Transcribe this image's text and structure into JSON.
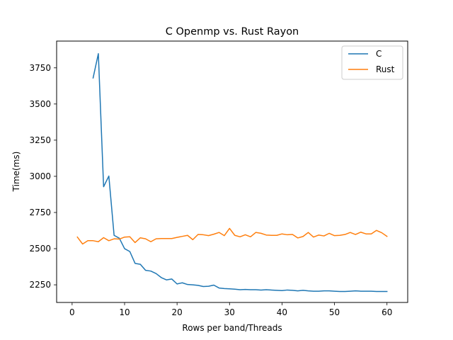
{
  "chart_data": {
    "type": "line",
    "title": "C Openmp vs. Rust Rayon",
    "xlabel": "Rows per band/Threads",
    "ylabel": "Time(ms)",
    "xlim": [
      -2.95,
      63.95
    ],
    "ylim": [
      2128,
      3935
    ],
    "xticks": [
      0,
      10,
      20,
      30,
      40,
      50,
      60
    ],
    "yticks": [
      2250,
      2500,
      2750,
      3000,
      3250,
      3500,
      3750
    ],
    "grid": false,
    "legend_position": "top-right",
    "series": [
      {
        "name": "C",
        "color": "#1f77b4",
        "x": [
          4,
          5,
          6,
          7,
          8,
          9,
          10,
          11,
          12,
          13,
          14,
          15,
          16,
          17,
          18,
          19,
          20,
          21,
          22,
          23,
          24,
          25,
          26,
          27,
          28,
          29,
          30,
          31,
          32,
          33,
          34,
          35,
          36,
          37,
          38,
          39,
          40,
          41,
          42,
          43,
          44,
          45,
          46,
          47,
          48,
          49,
          50,
          51,
          52,
          53,
          54,
          55,
          56,
          57,
          58,
          59,
          60
        ],
        "y": [
          3680,
          3848,
          2928,
          3002,
          2592,
          2572,
          2500,
          2480,
          2398,
          2392,
          2350,
          2345,
          2328,
          2300,
          2284,
          2290,
          2256,
          2264,
          2252,
          2250,
          2246,
          2238,
          2240,
          2248,
          2228,
          2224,
          2222,
          2220,
          2216,
          2218,
          2216,
          2216,
          2214,
          2216,
          2214,
          2212,
          2210,
          2214,
          2212,
          2208,
          2212,
          2208,
          2206,
          2206,
          2208,
          2208,
          2206,
          2204,
          2204,
          2206,
          2208,
          2206,
          2206,
          2206,
          2204,
          2204,
          2204
        ]
      },
      {
        "name": "Rust",
        "color": "#ff7f0e",
        "x": [
          1,
          2,
          3,
          4,
          5,
          6,
          7,
          8,
          9,
          10,
          11,
          12,
          13,
          14,
          15,
          16,
          17,
          18,
          19,
          20,
          21,
          22,
          23,
          24,
          25,
          26,
          27,
          28,
          29,
          30,
          31,
          32,
          33,
          34,
          35,
          36,
          37,
          38,
          39,
          40,
          41,
          42,
          43,
          44,
          45,
          46,
          47,
          48,
          49,
          50,
          51,
          52,
          53,
          54,
          55,
          56,
          57,
          58,
          59,
          60
        ],
        "y": [
          2580,
          2532,
          2555,
          2555,
          2548,
          2576,
          2555,
          2568,
          2566,
          2580,
          2582,
          2542,
          2575,
          2568,
          2548,
          2568,
          2570,
          2570,
          2570,
          2578,
          2585,
          2592,
          2562,
          2598,
          2596,
          2590,
          2600,
          2612,
          2590,
          2640,
          2592,
          2582,
          2596,
          2582,
          2612,
          2606,
          2594,
          2592,
          2592,
          2602,
          2596,
          2598,
          2574,
          2584,
          2612,
          2580,
          2594,
          2588,
          2606,
          2590,
          2592,
          2598,
          2612,
          2598,
          2614,
          2602,
          2602,
          2626,
          2610,
          2585
        ]
      }
    ]
  }
}
